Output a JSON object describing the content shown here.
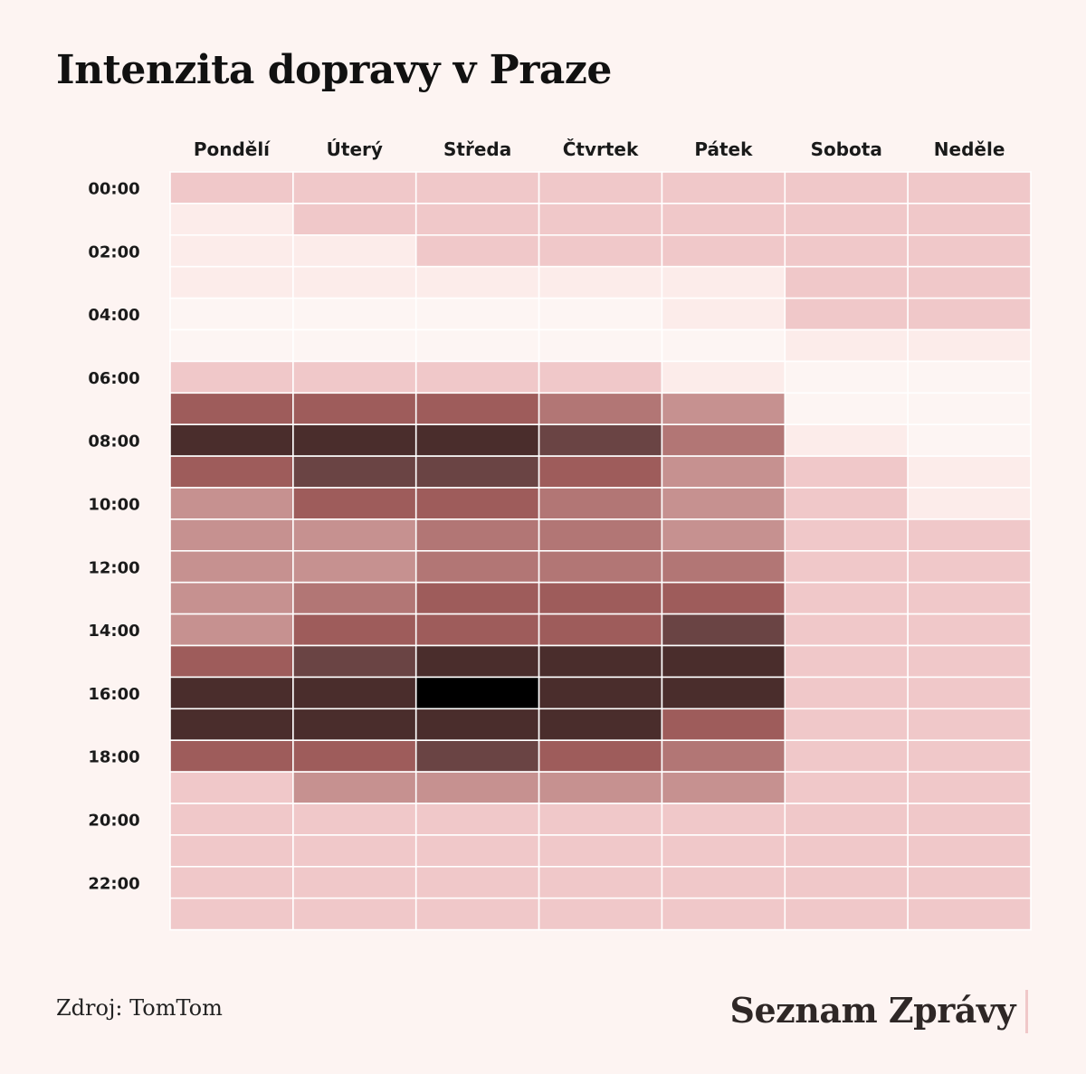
{
  "colors": {
    "background": "#fdf4f2",
    "scale": [
      "#fdf5f3",
      "#fcecea",
      "#f0c8c9",
      "#c69190",
      "#b27675",
      "#9e5c5b",
      "#6a4444",
      "#4a2d2c",
      "#000000"
    ],
    "brand_bar": "#f0c8c9"
  },
  "chart_data": {
    "type": "heatmap",
    "title": "Intenzita dopravy v Praze",
    "columns": [
      "Pondělí",
      "Úterý",
      "Středa",
      "Čtvrtek",
      "Pátek",
      "Sobota",
      "Neděle"
    ],
    "row_labels": [
      "00:00",
      "02:00",
      "04:00",
      "06:00",
      "08:00",
      "10:00",
      "12:00",
      "14:00",
      "16:00",
      "18:00",
      "20:00",
      "22:00"
    ],
    "hours": [
      0,
      1,
      2,
      3,
      4,
      5,
      6,
      7,
      8,
      9,
      10,
      11,
      12,
      13,
      14,
      15,
      16,
      17,
      18,
      19,
      20,
      21,
      22,
      23
    ],
    "values": [
      [
        2,
        2,
        2,
        2,
        2,
        2,
        2
      ],
      [
        1,
        2,
        2,
        2,
        2,
        2,
        2
      ],
      [
        1,
        1,
        2,
        2,
        2,
        2,
        2
      ],
      [
        1,
        1,
        1,
        1,
        1,
        2,
        2
      ],
      [
        0,
        0,
        0,
        0,
        1,
        2,
        2
      ],
      [
        0,
        0,
        0,
        0,
        0,
        1,
        1
      ],
      [
        2,
        2,
        2,
        2,
        1,
        0,
        0
      ],
      [
        5,
        5,
        5,
        4,
        3,
        0,
        0
      ],
      [
        7,
        7,
        7,
        6,
        4,
        1,
        0
      ],
      [
        5,
        6,
        6,
        5,
        3,
        2,
        1
      ],
      [
        3,
        5,
        5,
        4,
        3,
        2,
        1
      ],
      [
        3,
        3,
        4,
        4,
        3,
        2,
        2
      ],
      [
        3,
        3,
        4,
        4,
        4,
        2,
        2
      ],
      [
        3,
        4,
        5,
        5,
        5,
        2,
        2
      ],
      [
        3,
        5,
        5,
        5,
        6,
        2,
        2
      ],
      [
        5,
        6,
        7,
        7,
        7,
        2,
        2
      ],
      [
        7,
        7,
        8,
        7,
        7,
        2,
        2
      ],
      [
        7,
        7,
        7,
        7,
        5,
        2,
        2
      ],
      [
        5,
        5,
        6,
        5,
        4,
        2,
        2
      ],
      [
        2,
        3,
        3,
        3,
        3,
        2,
        2
      ],
      [
        2,
        2,
        2,
        2,
        2,
        2,
        2
      ],
      [
        2,
        2,
        2,
        2,
        2,
        2,
        2
      ],
      [
        2,
        2,
        2,
        2,
        2,
        2,
        2
      ],
      [
        2,
        2,
        2,
        2,
        2,
        2,
        2
      ]
    ]
  },
  "footer": {
    "source": "Zdroj: TomTom",
    "brand": "Seznam Zprávy"
  }
}
